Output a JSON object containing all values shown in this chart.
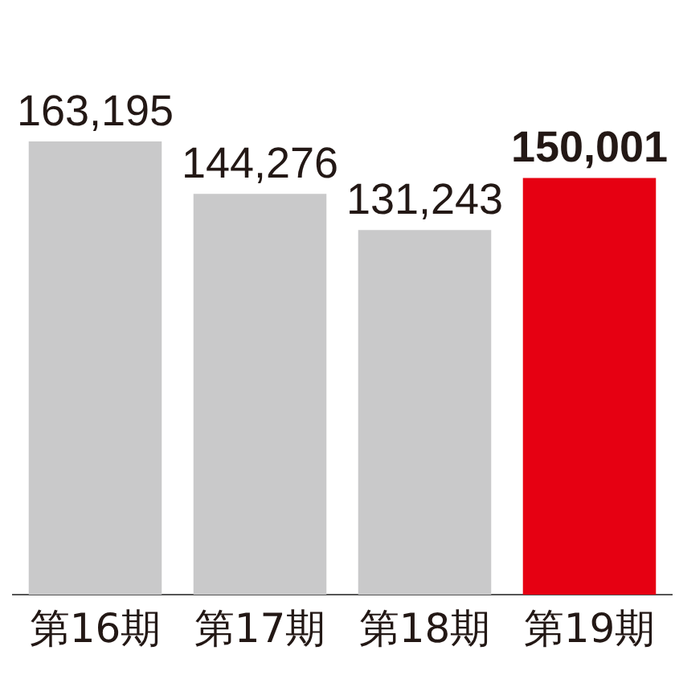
{
  "chart_data": {
    "type": "bar",
    "categories": [
      "第16期",
      "第17期",
      "第18期",
      "第19期"
    ],
    "values": [
      163195,
      144276,
      131243,
      150001
    ],
    "colors": [
      "#c9c9ca",
      "#c9c9ca",
      "#c9c9ca",
      "#e60012"
    ],
    "value_labels": [
      "163,195",
      "144,276",
      "131,243",
      "150,001"
    ],
    "tick_labels": "x",
    "grid": false,
    "legend": false
  }
}
